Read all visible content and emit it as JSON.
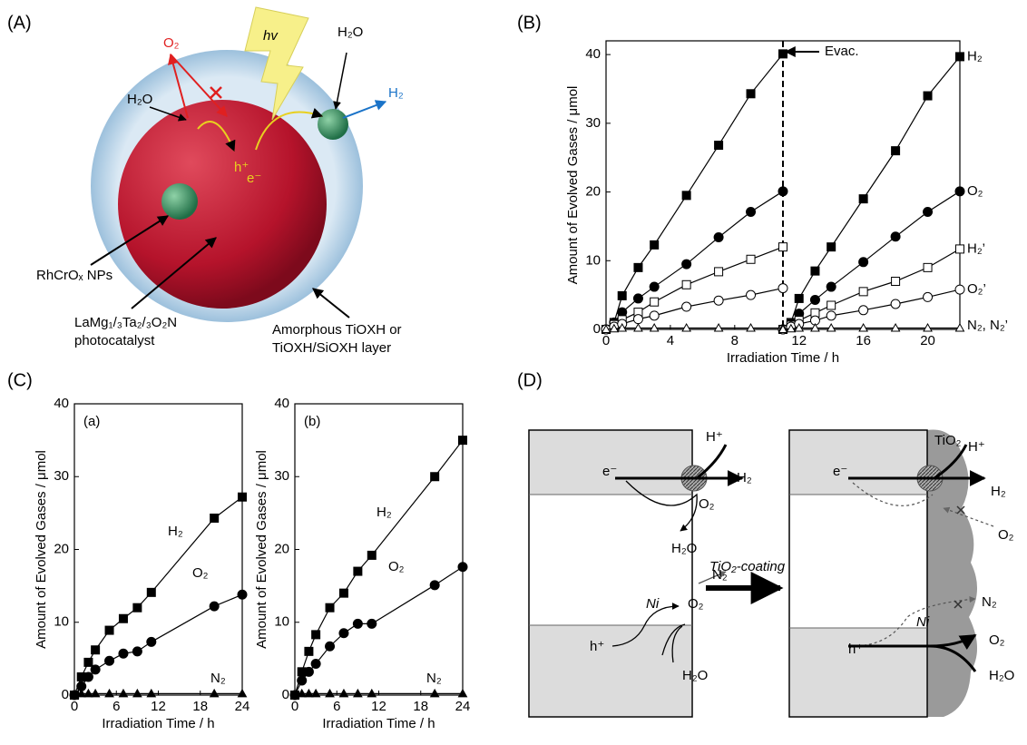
{
  "panel_labels": [
    "(A)",
    "(B)",
    "(C)",
    "(D)"
  ],
  "diagram_a": {
    "labels": [
      "hv",
      "O₂",
      "H₂O",
      "H₂O",
      "H₂",
      "h⁺",
      "e⁻",
      "RhCrOₓ NPs",
      "LaMg₁/₃Ta₂/₃O₂N",
      "photocatalyst",
      "Amorphous TiOXH or",
      "TiOXH/SiOXH layer"
    ]
  },
  "diagram_d": {
    "arrow_label": "TiO₂-coating",
    "left": {
      "labels": [
        "H⁺",
        "e⁻",
        "H₂",
        "O₂",
        "H₂O",
        "N₂",
        "Ni",
        "h⁺",
        "O₂",
        "H₂O"
      ]
    },
    "right": {
      "labels": [
        "TiO₂",
        "H⁺",
        "e⁻",
        "H₂",
        "O₂",
        "N₂",
        "Ni",
        "h⁺",
        "O₂",
        "H₂O"
      ]
    }
  },
  "chart_data": [
    {
      "type": "line",
      "xlabel": "Irradiation Time / h",
      "ylabel": "Amount of Evolved Gases / μmol",
      "xlim": [
        0,
        22
      ],
      "ylim": [
        0,
        42
      ],
      "xticks": [
        0,
        4,
        8,
        12,
        16,
        20
      ],
      "yticks": [
        0,
        10,
        20,
        30,
        40
      ],
      "annotation": {
        "text": "Evac.",
        "x": 11
      },
      "x": [
        0,
        0.5,
        1,
        2,
        3,
        5,
        7,
        9,
        11,
        11,
        11,
        11.5,
        12,
        13,
        14,
        16,
        18,
        20,
        22
      ],
      "series": [
        {
          "name": "H₂",
          "color": "#000000",
          "marker": "square",
          "filled": true,
          "values": [
            0,
            1,
            4.9,
            9,
            12.3,
            19.5,
            26.8,
            34.3,
            40.1,
            null,
            0,
            1,
            4.5,
            8.5,
            12,
            19,
            26,
            34,
            39.7
          ]
        },
        {
          "name": "O₂",
          "color": "#000000",
          "marker": "circle",
          "filled": true,
          "values": [
            0,
            1,
            2.5,
            4.5,
            6.2,
            9.5,
            13.4,
            17.1,
            20.1,
            null,
            0,
            0.5,
            2.3,
            4.3,
            6.2,
            9.8,
            13.5,
            17.1,
            20.1
          ]
        },
        {
          "name": "H₂’",
          "color": "#000000",
          "marker": "square",
          "filled": false,
          "values": [
            0,
            0.7,
            1.4,
            2.5,
            4,
            6.5,
            8.4,
            10.2,
            12,
            null,
            0,
            0.6,
            1.3,
            2.4,
            3.5,
            5.5,
            7,
            9,
            11.7
          ]
        },
        {
          "name": "O₂’",
          "color": "#000000",
          "marker": "circle",
          "filled": false,
          "values": [
            0,
            0.4,
            0.8,
            1.5,
            2,
            3.3,
            4.2,
            5,
            6,
            null,
            0,
            0.4,
            0.8,
            1.3,
            2,
            2.8,
            3.7,
            4.7,
            5.8
          ]
        },
        {
          "name": "N₂, N₂’",
          "color": "#000000",
          "marker": "triangle",
          "filled": false,
          "values": [
            0,
            0.1,
            0.2,
            0.2,
            0.2,
            0.2,
            0.2,
            0.2,
            0.2,
            null,
            0,
            0.1,
            0.2,
            0.2,
            0.2,
            0.2,
            0.2,
            0.2,
            0.2
          ]
        }
      ]
    },
    {
      "type": "line",
      "title": "(a)",
      "xlabel": "Irradiation Time / h",
      "ylabel": "Amount of Evolved Gases / μmol",
      "xlim": [
        0,
        24
      ],
      "ylim": [
        0,
        40
      ],
      "xticks": [
        0,
        6,
        12,
        18,
        24
      ],
      "yticks": [
        0,
        10,
        20,
        30,
        40
      ],
      "x": [
        0,
        1,
        2,
        3,
        5,
        7,
        9,
        11,
        20,
        24
      ],
      "series": [
        {
          "name": "H₂",
          "color": "#000000",
          "marker": "square",
          "filled": true,
          "values": [
            0,
            2.5,
            4.5,
            6.2,
            8.9,
            10.5,
            12,
            14.1,
            24.3,
            27.2
          ]
        },
        {
          "name": "O₂",
          "color": "#000000",
          "marker": "circle",
          "filled": true,
          "values": [
            0,
            1.2,
            2.5,
            3.5,
            4.7,
            5.7,
            6,
            7.3,
            12.2,
            13.8
          ]
        },
        {
          "name": "N₂",
          "color": "#000000",
          "marker": "triangle",
          "filled": true,
          "values": [
            0,
            0.2,
            0.2,
            0.2,
            0.2,
            0.2,
            0.2,
            0.2,
            0.2,
            0.2
          ]
        }
      ]
    },
    {
      "type": "line",
      "title": "(b)",
      "xlabel": "Irradiation Time / h",
      "ylabel": "Amount of Evolved Gases / μmol",
      "xlim": [
        0,
        24
      ],
      "ylim": [
        0,
        40
      ],
      "xticks": [
        0,
        6,
        12,
        18,
        24
      ],
      "yticks": [
        0,
        10,
        20,
        30,
        40
      ],
      "x": [
        0,
        1,
        2,
        3,
        5,
        7,
        9,
        11,
        20,
        24
      ],
      "series": [
        {
          "name": "H₂",
          "color": "#000000",
          "marker": "square",
          "filled": true,
          "values": [
            0,
            3.2,
            6,
            8.3,
            12,
            14,
            17,
            19.2,
            30,
            35
          ]
        },
        {
          "name": "O₂",
          "color": "#000000",
          "marker": "circle",
          "filled": true,
          "values": [
            0,
            2,
            3.2,
            4.3,
            6.7,
            8.5,
            9.8,
            9.8,
            15.1,
            17.6
          ]
        },
        {
          "name": "N₂",
          "color": "#000000",
          "marker": "triangle",
          "filled": true,
          "values": [
            0,
            0.2,
            0.2,
            0.2,
            0.2,
            0.2,
            0.2,
            0.2,
            0.2,
            0.2
          ]
        }
      ]
    }
  ]
}
